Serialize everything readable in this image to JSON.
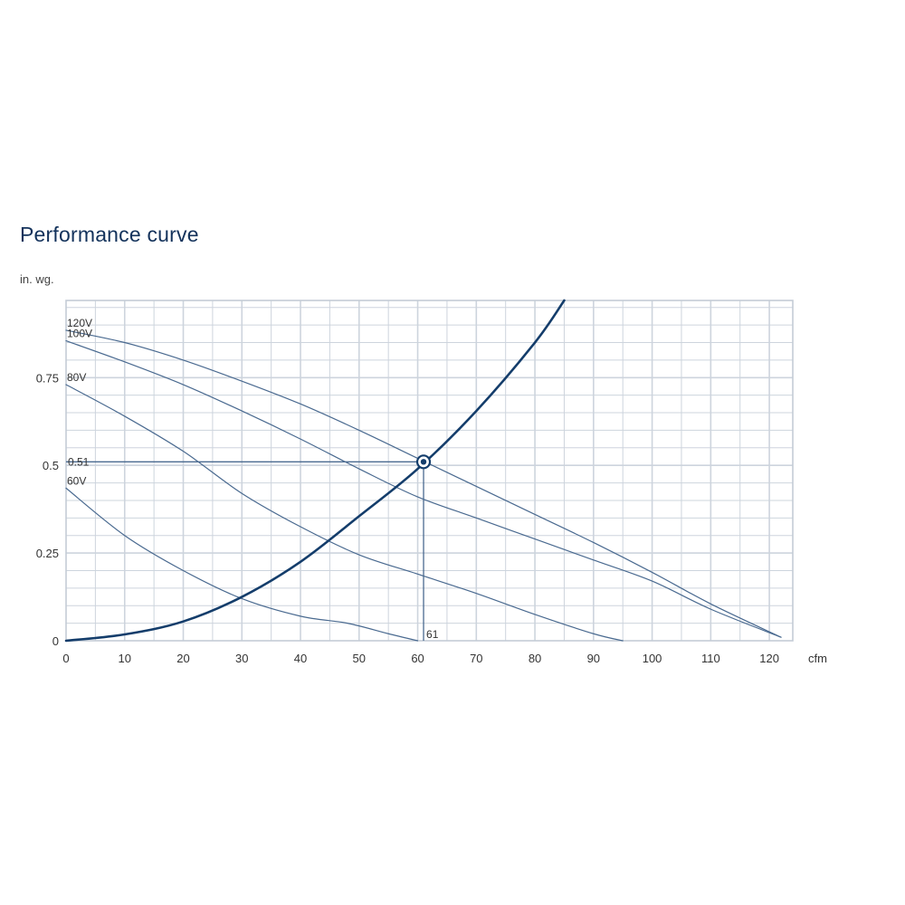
{
  "chart_data": {
    "type": "line",
    "title": "Performance curve",
    "ylabel": "in. wg.",
    "xlabel": "cfm",
    "xlim": [
      0,
      124
    ],
    "ylim": [
      0,
      0.97
    ],
    "x_ticks": [
      0,
      10,
      20,
      30,
      40,
      50,
      60,
      70,
      80,
      90,
      100,
      110,
      120
    ],
    "y_ticks": [
      {
        "value": 0,
        "label": "0"
      },
      {
        "value": 0.25,
        "label": "0.25"
      },
      {
        "value": 0.5,
        "label": "0.5"
      },
      {
        "value": 0.75,
        "label": "0.75"
      }
    ],
    "grid": true,
    "series": [
      {
        "name": "120V",
        "points": [
          [
            0,
            0.885
          ],
          [
            10,
            0.85
          ],
          [
            20,
            0.8
          ],
          [
            30,
            0.74
          ],
          [
            40,
            0.675
          ],
          [
            50,
            0.6
          ],
          [
            60,
            0.52
          ],
          [
            70,
            0.44
          ],
          [
            80,
            0.36
          ],
          [
            90,
            0.28
          ],
          [
            100,
            0.195
          ],
          [
            110,
            0.105
          ],
          [
            122,
            0.01
          ]
        ]
      },
      {
        "name": "100V",
        "points": [
          [
            0,
            0.855
          ],
          [
            10,
            0.795
          ],
          [
            20,
            0.73
          ],
          [
            30,
            0.655
          ],
          [
            40,
            0.575
          ],
          [
            50,
            0.49
          ],
          [
            60,
            0.41
          ],
          [
            70,
            0.35
          ],
          [
            80,
            0.29
          ],
          [
            90,
            0.23
          ],
          [
            100,
            0.17
          ],
          [
            110,
            0.09
          ],
          [
            122,
            0.01
          ]
        ]
      },
      {
        "name": "80V",
        "points": [
          [
            0,
            0.73
          ],
          [
            10,
            0.64
          ],
          [
            20,
            0.54
          ],
          [
            30,
            0.42
          ],
          [
            40,
            0.325
          ],
          [
            50,
            0.245
          ],
          [
            60,
            0.19
          ],
          [
            70,
            0.135
          ],
          [
            80,
            0.075
          ],
          [
            90,
            0.02
          ],
          [
            95,
            0
          ]
        ]
      },
      {
        "name": "60V",
        "points": [
          [
            0,
            0.435
          ],
          [
            10,
            0.3
          ],
          [
            20,
            0.2
          ],
          [
            30,
            0.12
          ],
          [
            40,
            0.07
          ],
          [
            48,
            0.05
          ],
          [
            55,
            0.02
          ],
          [
            60,
            0
          ]
        ]
      },
      {
        "name": "",
        "points": [
          [
            0,
            0
          ],
          [
            10,
            0.018
          ],
          [
            20,
            0.055
          ],
          [
            30,
            0.125
          ],
          [
            40,
            0.225
          ],
          [
            50,
            0.355
          ],
          [
            60,
            0.49
          ],
          [
            70,
            0.655
          ],
          [
            80,
            0.85
          ],
          [
            85,
            0.97
          ]
        ]
      }
    ],
    "operating_point": {
      "x": 61,
      "y": 0.51,
      "x_label": "61",
      "y_label": "0.51"
    },
    "colors": {
      "grid": "#cdd4dd",
      "frame": "#c4ccd6",
      "fan_curve": "#4a6a90",
      "system_curve": "#143d6b",
      "marker": "#143d6b"
    }
  }
}
